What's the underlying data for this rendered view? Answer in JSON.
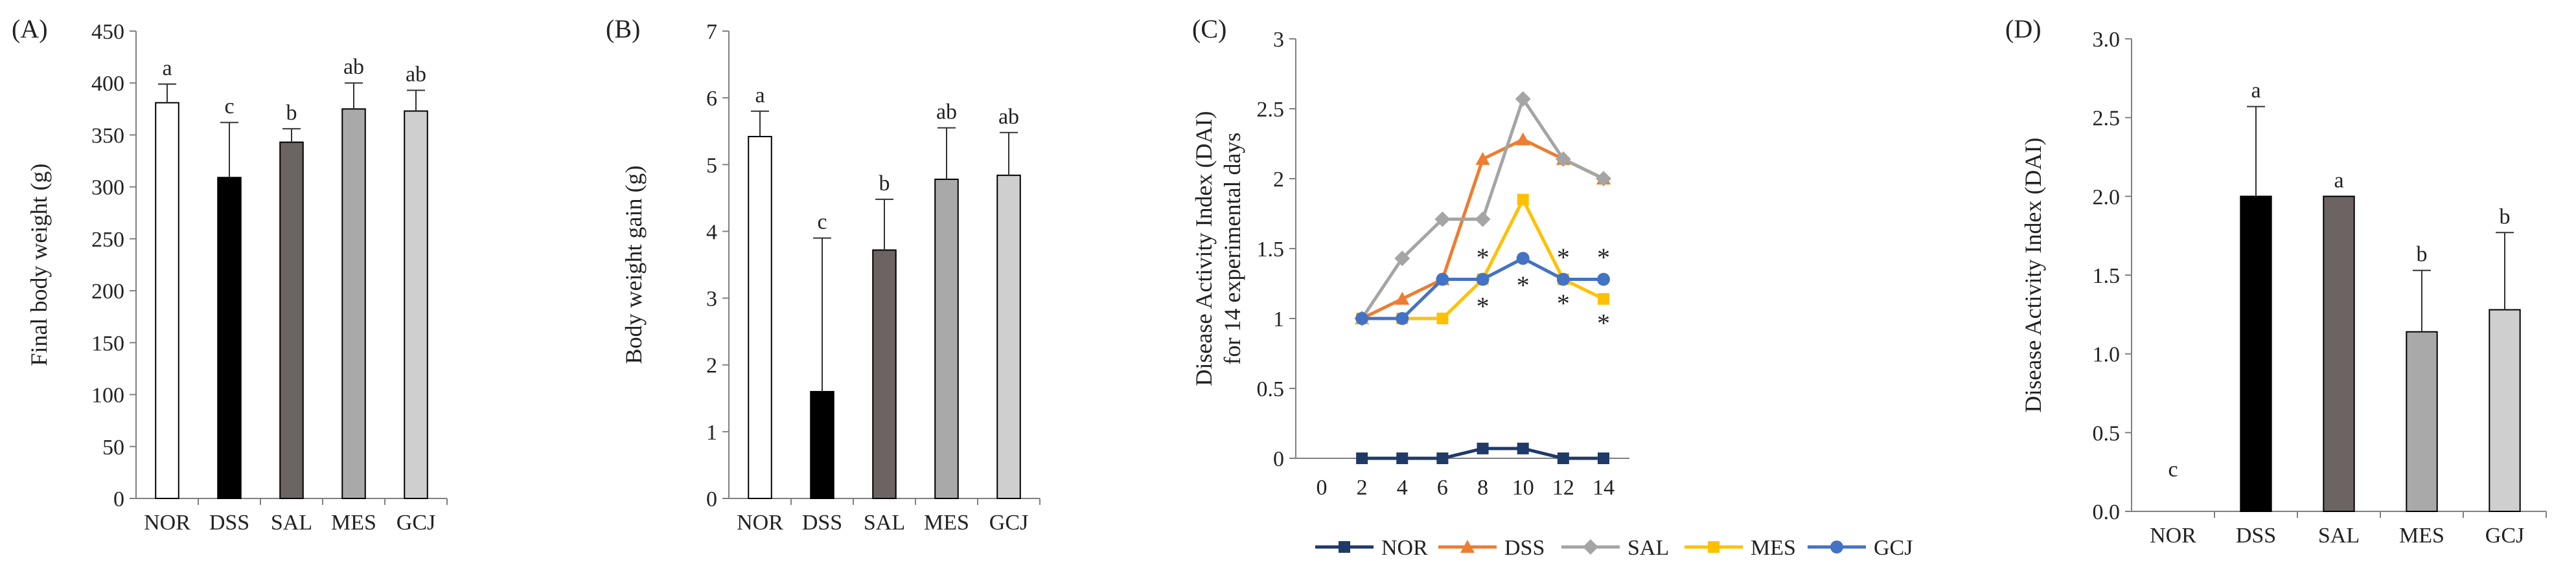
{
  "chart_data": [
    {
      "panel_label": "(A)",
      "type": "bar",
      "ylabel": "Final body weight (g)",
      "ylim": [
        0,
        450
      ],
      "yticks": [
        "0",
        "50",
        "100",
        "150",
        "200",
        "250",
        "300",
        "350",
        "400",
        "450"
      ],
      "categories": [
        "NOR",
        "DSS",
        "SAL",
        "MES",
        "GCJ"
      ],
      "values": [
        381,
        309,
        343,
        375,
        373
      ],
      "errors": [
        18,
        53,
        13,
        25,
        20
      ],
      "letters": [
        "a",
        "c",
        "b",
        "ab",
        "ab"
      ],
      "bar_colors": [
        "#ffffff",
        "#000000",
        "#6b6463",
        "#a9a9a9",
        "#cfcfcf"
      ]
    },
    {
      "panel_label": "(B)",
      "type": "bar",
      "ylabel": "Body weight gain (g)",
      "ylim": [
        0,
        7
      ],
      "yticks": [
        "0",
        "1",
        "2",
        "3",
        "4",
        "5",
        "6",
        "7"
      ],
      "categories": [
        "NOR",
        "DSS",
        "SAL",
        "MES",
        "GCJ"
      ],
      "values": [
        5.42,
        1.6,
        3.72,
        4.78,
        4.84
      ],
      "errors": [
        0.38,
        2.3,
        0.76,
        0.77,
        0.64
      ],
      "letters": [
        "a",
        "c",
        "b",
        "ab",
        "ab"
      ],
      "bar_colors": [
        "#ffffff",
        "#000000",
        "#6b6463",
        "#a9a9a9",
        "#cfcfcf"
      ]
    },
    {
      "panel_label": "(C)",
      "type": "line",
      "ylabel": "Disease Activity Index (DAI)",
      "ylabel2": "for 14 experimental days",
      "ylim": [
        0,
        3
      ],
      "yticks": [
        "0",
        "0.5",
        "1",
        "1.5",
        "2",
        "2.5",
        "3"
      ],
      "x": [
        0,
        2,
        4,
        6,
        8,
        10,
        12,
        14
      ],
      "xticks": [
        "0",
        "2",
        "4",
        "6",
        "8",
        "10",
        "12",
        "14"
      ],
      "series": [
        {
          "name": "NOR",
          "color": "#1f3a68",
          "marker": "square",
          "x": [
            2,
            4,
            6,
            8,
            10,
            12,
            14
          ],
          "values": [
            0,
            0,
            0,
            0.07,
            0.07,
            0,
            0
          ]
        },
        {
          "name": "DSS",
          "color": "#ed7d31",
          "marker": "triangle",
          "x": [
            2,
            4,
            6,
            8,
            10,
            12,
            14
          ],
          "values": [
            1,
            1.14,
            1.28,
            2.14,
            2.28,
            2.14,
            2
          ]
        },
        {
          "name": "SAL",
          "color": "#a5a5a5",
          "marker": "diamond",
          "x": [
            2,
            4,
            6,
            8,
            10,
            12,
            14
          ],
          "values": [
            1,
            1.43,
            1.71,
            1.71,
            2.57,
            2.14,
            2
          ]
        },
        {
          "name": "MES",
          "color": "#ffc000",
          "marker": "square",
          "x": [
            2,
            4,
            6,
            8,
            10,
            12,
            14
          ],
          "values": [
            1,
            1,
            1,
            1.28,
            1.85,
            1.28,
            1.14
          ]
        },
        {
          "name": "GCJ",
          "color": "#4472c4",
          "marker": "circle",
          "x": [
            2,
            4,
            6,
            8,
            10,
            12,
            14
          ],
          "values": [
            1,
            1,
            1.28,
            1.28,
            1.43,
            1.28,
            1.28
          ]
        }
      ],
      "annotations": [
        {
          "text": "*",
          "x": 8,
          "y": 1.45
        },
        {
          "text": "*",
          "x": 8,
          "y": 1.1
        },
        {
          "text": "*",
          "x": 10,
          "y": 1.25
        },
        {
          "text": "*",
          "x": 12,
          "y": 1.45
        },
        {
          "text": "*",
          "x": 12,
          "y": 1.12
        },
        {
          "text": "*",
          "x": 14,
          "y": 1.45
        },
        {
          "text": "*",
          "x": 14,
          "y": 0.98
        }
      ]
    },
    {
      "panel_label": "(D)",
      "type": "bar",
      "ylabel": "Disease Activity Index (DAI)",
      "ylim": [
        0,
        3
      ],
      "yticks": [
        "0.0",
        "0.5",
        "1.0",
        "1.5",
        "2.0",
        "2.5",
        "3.0"
      ],
      "categories": [
        "NOR",
        "DSS",
        "SAL",
        "MES",
        "GCJ"
      ],
      "values": [
        0,
        2.0,
        2.0,
        1.14,
        1.28
      ],
      "errors": [
        0,
        0.57,
        0,
        0.39,
        0.49
      ],
      "letters": [
        "c",
        "a",
        "a",
        "b",
        "b"
      ],
      "bar_colors": [
        "#ffffff",
        "#000000",
        "#6b6463",
        "#a9a9a9",
        "#cfcfcf"
      ]
    }
  ]
}
